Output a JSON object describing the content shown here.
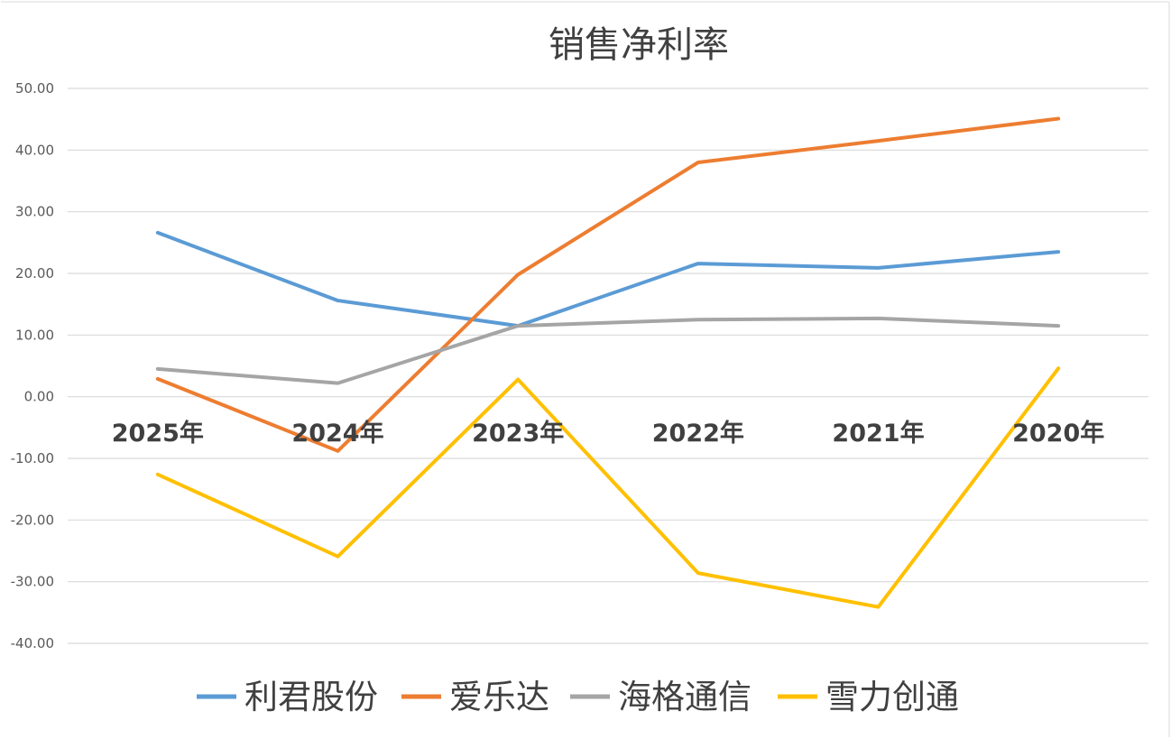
{
  "chart_data": {
    "type": "line",
    "title": "销售净利率",
    "categories": [
      "2025年",
      "2024年",
      "2023年",
      "2022年",
      "2021年",
      "2020年"
    ],
    "ylim": [
      -40,
      50
    ],
    "yticks": [
      "50.00",
      "40.00",
      "30.00",
      "20.00",
      "10.00",
      "0.00",
      "-10.00",
      "-20.00",
      "-30.00",
      "-40.00"
    ],
    "grid": true,
    "legend_position": "bottom",
    "series": [
      {
        "name": "利君股份",
        "color": "#5B9BD5",
        "values": [
          26.6,
          15.6,
          11.5,
          21.6,
          20.9,
          23.5
        ]
      },
      {
        "name": "爱乐达",
        "color": "#ED7D31",
        "values": [
          2.9,
          -8.8,
          19.8,
          38.0,
          41.5,
          45.1
        ]
      },
      {
        "name": "海格通信",
        "color": "#A5A5A5",
        "values": [
          4.5,
          2.2,
          11.5,
          12.5,
          12.7,
          11.5
        ]
      },
      {
        "name": "雪力创通",
        "color": "#FFC000",
        "values": [
          -12.6,
          -25.9,
          2.8,
          -28.6,
          -34.1,
          4.6
        ]
      }
    ]
  }
}
